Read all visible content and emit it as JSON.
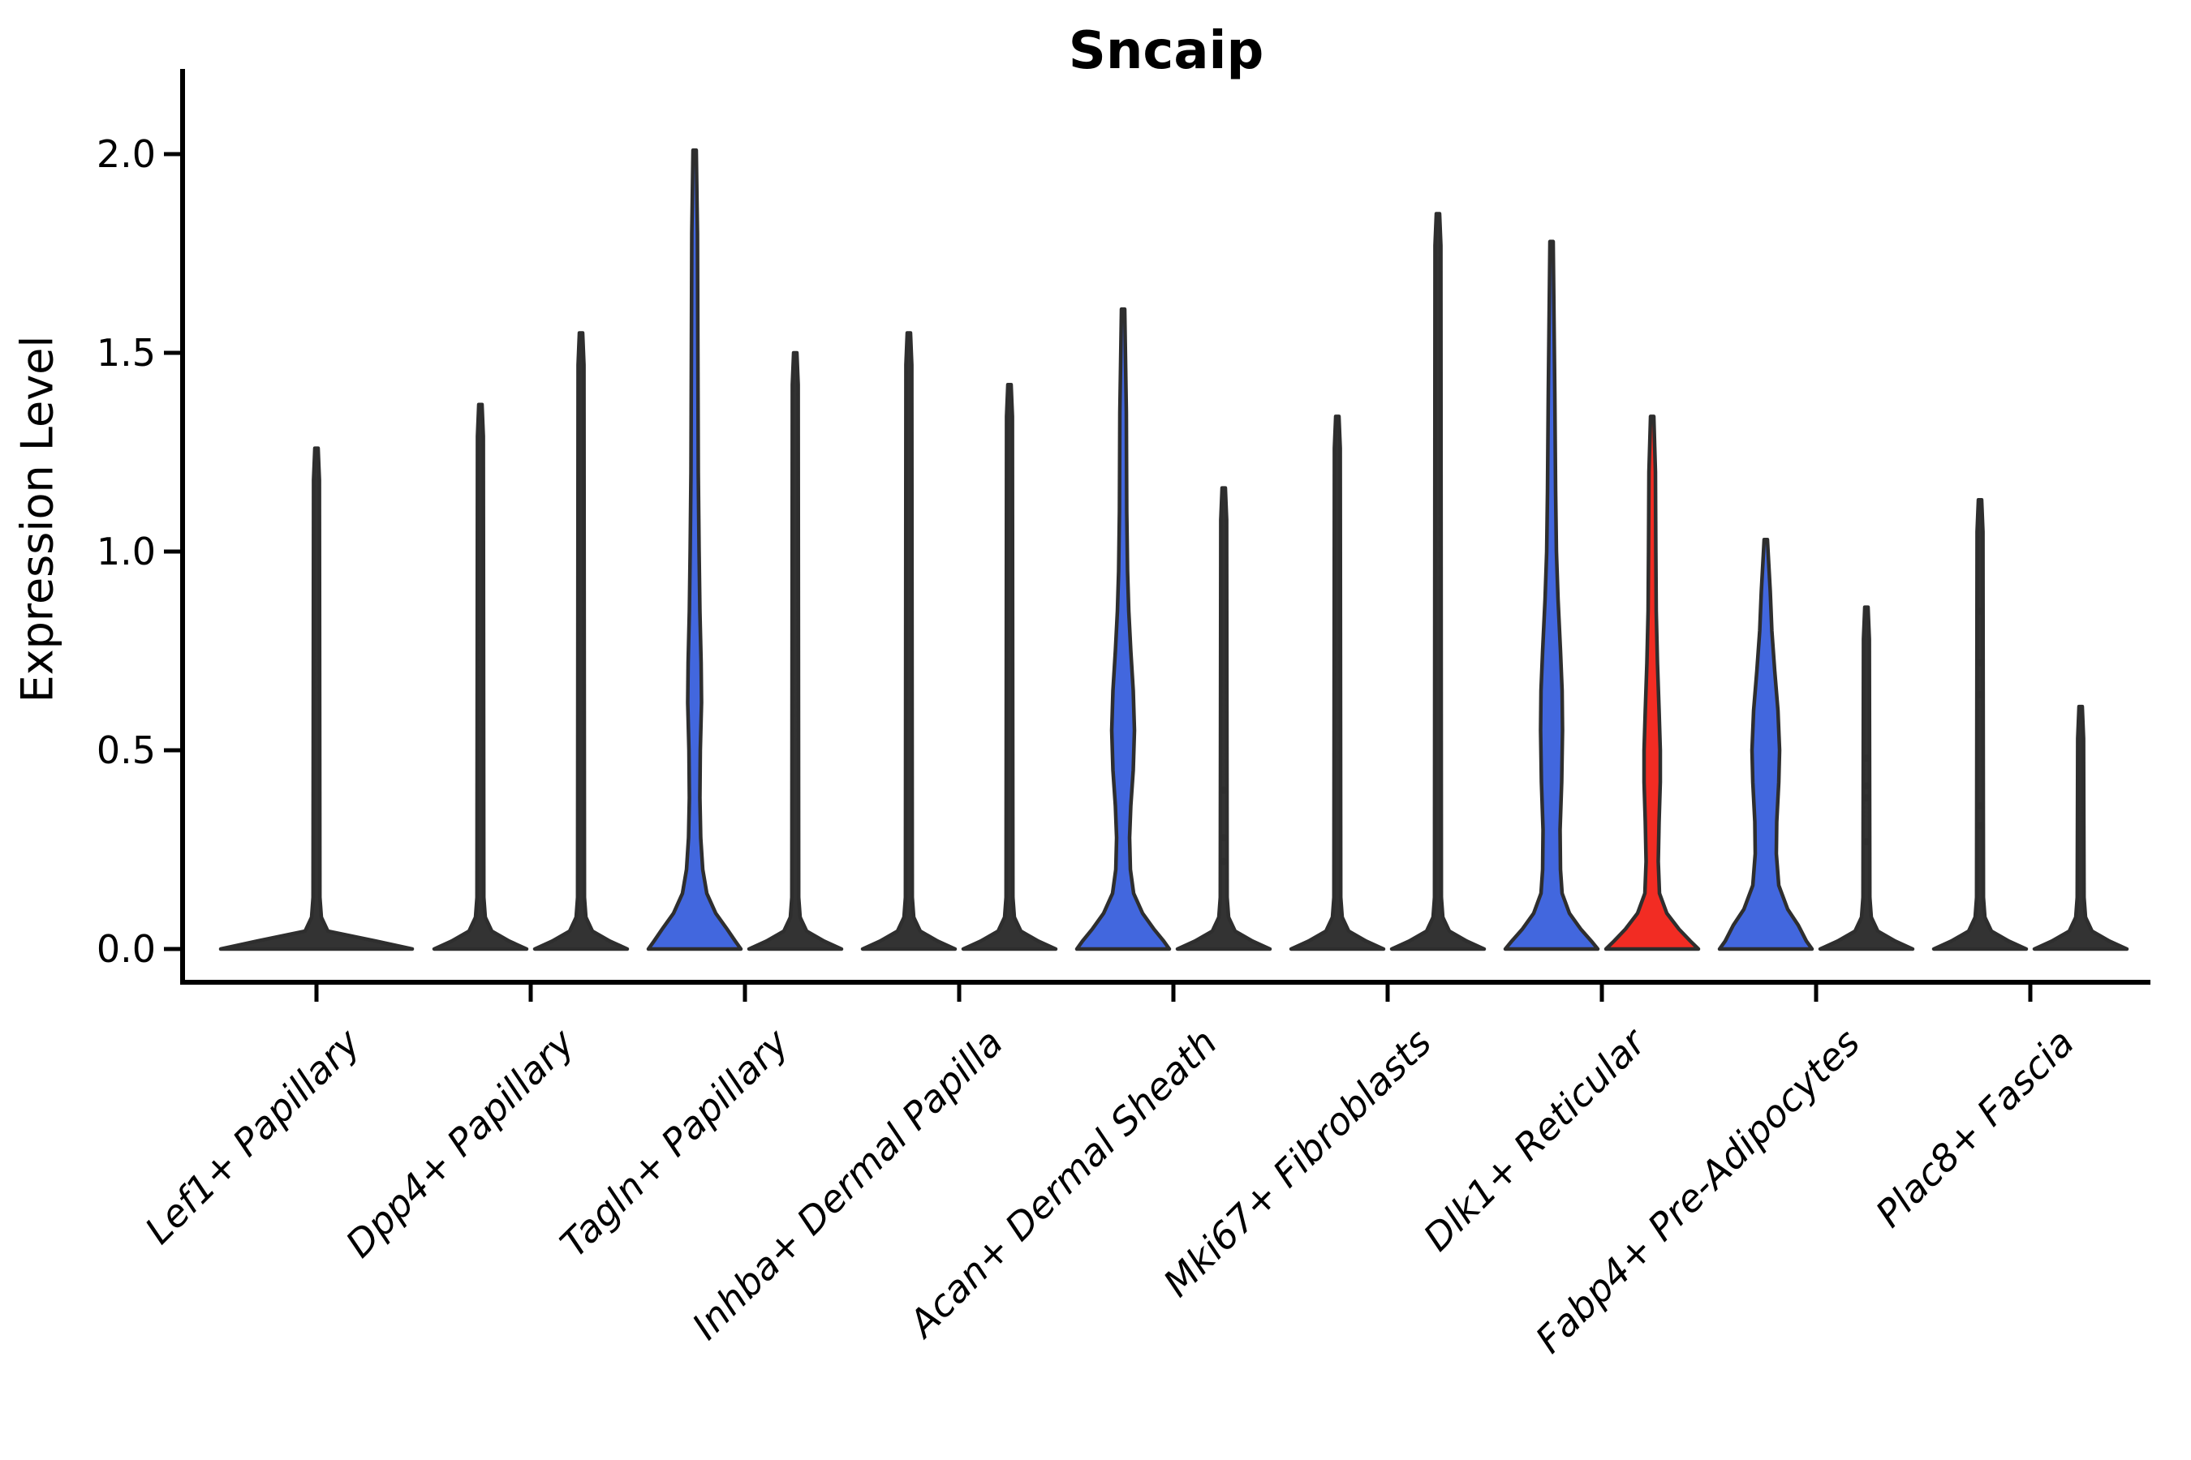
{
  "title": "Sncaip",
  "y_axis": {
    "label": "Expression Level",
    "ticks": [
      "2.0",
      "1.5",
      "1.0",
      "0.5",
      "0.0"
    ]
  },
  "chart_data": {
    "type": "violin",
    "title": "Sncaip",
    "ylabel": "Expression Level",
    "ylim": [
      0,
      2.05
    ],
    "ytick_values": [
      2.0,
      1.5,
      1.0,
      0.5,
      0.0
    ],
    "grid": false,
    "legend": "none",
    "colors": {
      "blue_fill": "#4267DE",
      "red_fill": "#F22C23",
      "outline": "#2E2E2E",
      "axis": "#000000"
    },
    "categories": [
      "Lef1+ Papillary",
      "Dpp4+ Papillary",
      "Tagln+ Papillary",
      "Inhba+ Dermal Papilla",
      "Acan+ Dermal Sheath",
      "Mki67+ Fibroblasts",
      "Dlk1+ Reticular",
      "Fabp4+ Pre-Adipocytes",
      "Plac8+ Fascia"
    ],
    "violins": [
      {
        "category": "Lef1+ Papillary",
        "side": "center",
        "fill": "#333333",
        "max_expression": 1.26,
        "base_halfwidth": 118
      },
      {
        "category": "Dpp4+ Papillary",
        "side": "left",
        "fill": "#333333",
        "max_expression": 1.37
      },
      {
        "category": "Dpp4+ Papillary",
        "side": "right",
        "fill": "#333333",
        "max_expression": 1.55
      },
      {
        "category": "Tagln+ Papillary",
        "side": "left",
        "fill": "#4267DE",
        "max_expression": 2.01,
        "profile": [
          [
            0,
            57
          ],
          [
            0.02,
            50
          ],
          [
            0.05,
            40
          ],
          [
            0.09,
            26
          ],
          [
            0.14,
            15
          ],
          [
            0.2,
            10
          ],
          [
            0.28,
            7.5
          ],
          [
            0.38,
            6.5
          ],
          [
            0.5,
            7
          ],
          [
            0.62,
            8.5
          ],
          [
            0.72,
            8
          ],
          [
            0.85,
            6.5
          ],
          [
            1.0,
            5.5
          ],
          [
            1.2,
            4.5
          ],
          [
            1.5,
            4
          ],
          [
            1.8,
            3.5
          ],
          [
            2.01,
            2
          ]
        ]
      },
      {
        "category": "Tagln+ Papillary",
        "side": "right",
        "fill": "#333333",
        "max_expression": 1.5
      },
      {
        "category": "Inhba+ Dermal Papilla",
        "side": "left",
        "fill": "#333333",
        "max_expression": 1.55
      },
      {
        "category": "Inhba+ Dermal Papilla",
        "side": "right",
        "fill": "#333333",
        "max_expression": 1.42
      },
      {
        "category": "Acan+ Dermal Sheath",
        "side": "left",
        "fill": "#4267DE",
        "max_expression": 1.61,
        "profile": [
          [
            0,
            57
          ],
          [
            0.02,
            50
          ],
          [
            0.05,
            38
          ],
          [
            0.09,
            24
          ],
          [
            0.14,
            13
          ],
          [
            0.2,
            9
          ],
          [
            0.28,
            8
          ],
          [
            0.36,
            9.5
          ],
          [
            0.45,
            12.5
          ],
          [
            0.55,
            14
          ],
          [
            0.65,
            12.5
          ],
          [
            0.75,
            9.5
          ],
          [
            0.85,
            7
          ],
          [
            0.95,
            5.5
          ],
          [
            1.1,
            4.5
          ],
          [
            1.35,
            4
          ],
          [
            1.61,
            2
          ]
        ]
      },
      {
        "category": "Acan+ Dermal Sheath",
        "side": "right",
        "fill": "#333333",
        "max_expression": 1.16,
        "dots": [
          0.4,
          0.28,
          0.22
        ]
      },
      {
        "category": "Mki67+ Fibroblasts",
        "side": "left",
        "fill": "#333333",
        "max_expression": 1.34
      },
      {
        "category": "Mki67+ Fibroblasts",
        "side": "right",
        "fill": "#333333",
        "max_expression": 1.85
      },
      {
        "category": "Dlk1+ Reticular",
        "side": "left",
        "fill": "#4267DE",
        "max_expression": 1.78,
        "profile": [
          [
            0,
            57
          ],
          [
            0.02,
            49
          ],
          [
            0.05,
            36
          ],
          [
            0.09,
            22
          ],
          [
            0.14,
            13
          ],
          [
            0.2,
            11
          ],
          [
            0.3,
            10.5
          ],
          [
            0.42,
            12.5
          ],
          [
            0.55,
            13.5
          ],
          [
            0.65,
            13
          ],
          [
            0.75,
            11
          ],
          [
            0.88,
            8
          ],
          [
            1.0,
            6
          ],
          [
            1.15,
            5
          ],
          [
            1.4,
            4
          ],
          [
            1.78,
            2
          ]
        ]
      },
      {
        "category": "Dlk1+ Reticular",
        "side": "right",
        "fill": "#F22C23",
        "max_expression": 1.34,
        "profile": [
          [
            0,
            57
          ],
          [
            0.02,
            47
          ],
          [
            0.05,
            33
          ],
          [
            0.09,
            18
          ],
          [
            0.14,
            9
          ],
          [
            0.22,
            7.5
          ],
          [
            0.32,
            8.5
          ],
          [
            0.42,
            10
          ],
          [
            0.5,
            10
          ],
          [
            0.6,
            8.5
          ],
          [
            0.72,
            6.5
          ],
          [
            0.85,
            5
          ],
          [
            1.0,
            4.5
          ],
          [
            1.2,
            4
          ],
          [
            1.34,
            2
          ]
        ]
      },
      {
        "category": "Fabp4+ Pre-Adipocytes",
        "side": "left",
        "fill": "#4267DE",
        "max_expression": 1.03,
        "profile": [
          [
            0,
            57
          ],
          [
            0.02,
            50
          ],
          [
            0.06,
            40
          ],
          [
            0.1,
            27
          ],
          [
            0.16,
            16
          ],
          [
            0.24,
            13
          ],
          [
            0.32,
            13.5
          ],
          [
            0.42,
            16
          ],
          [
            0.5,
            17
          ],
          [
            0.6,
            15
          ],
          [
            0.7,
            11
          ],
          [
            0.8,
            7.5
          ],
          [
            0.9,
            5.5
          ],
          [
            1.03,
            2
          ]
        ]
      },
      {
        "category": "Fabp4+ Pre-Adipocytes",
        "side": "right",
        "fill": "#333333",
        "max_expression": 0.86,
        "dots": [
          0.48,
          0.41,
          0.38,
          0.27
        ]
      },
      {
        "category": "Plac8+ Fascia",
        "side": "left",
        "fill": "#333333",
        "max_expression": 1.13,
        "dots": [
          0.85,
          0.72,
          0.64,
          0.36,
          0.31
        ]
      },
      {
        "category": "Plac8+ Fascia",
        "side": "right",
        "fill": "#333333",
        "max_expression": 0.61
      }
    ]
  }
}
